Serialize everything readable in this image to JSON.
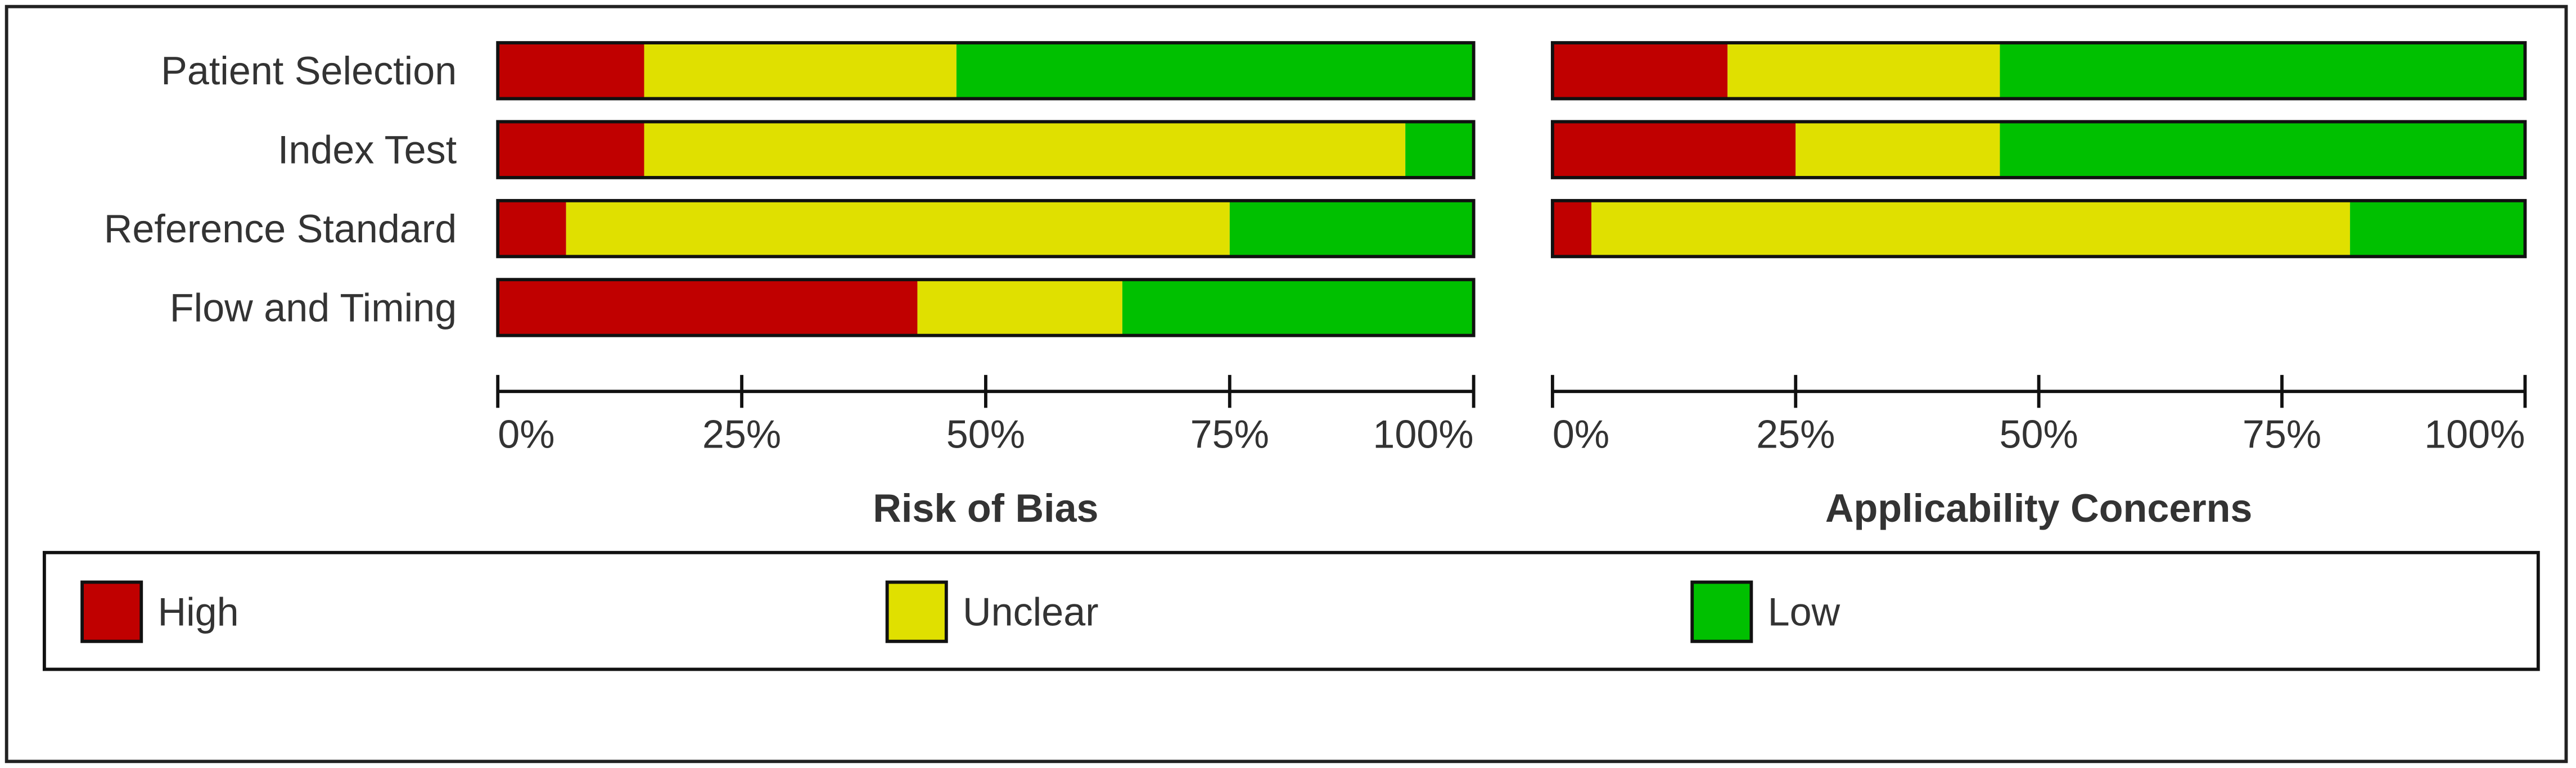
{
  "chart_data": {
    "type": "bar",
    "orientation": "horizontal",
    "stacked": true,
    "categories": [
      "Patient Selection",
      "Index Test",
      "Reference Standard",
      "Flow and Timing"
    ],
    "xlim": [
      0,
      100
    ],
    "xticks": [
      {
        "value": 0,
        "label": "0%"
      },
      {
        "value": 25,
        "label": "25%"
      },
      {
        "value": 50,
        "label": "50%"
      },
      {
        "value": 75,
        "label": "75%"
      },
      {
        "value": 100,
        "label": "100%"
      }
    ],
    "legend": "bottom",
    "series": [
      {
        "name": "High",
        "color": "#c00000"
      },
      {
        "name": "Unclear",
        "color": "#e0e000"
      },
      {
        "name": "Low",
        "color": "#00c000"
      }
    ],
    "panels": [
      {
        "title": "Risk of Bias",
        "values": [
          [
            15,
            15,
            7,
            43
          ],
          [
            32,
            78,
            68,
            21
          ],
          [
            53,
            7,
            25,
            36
          ]
        ]
      },
      {
        "title": "Applicability Concerns",
        "values": [
          [
            18,
            25,
            4,
            null
          ],
          [
            28,
            21,
            78,
            null
          ],
          [
            54,
            54,
            18,
            null
          ]
        ]
      }
    ]
  }
}
